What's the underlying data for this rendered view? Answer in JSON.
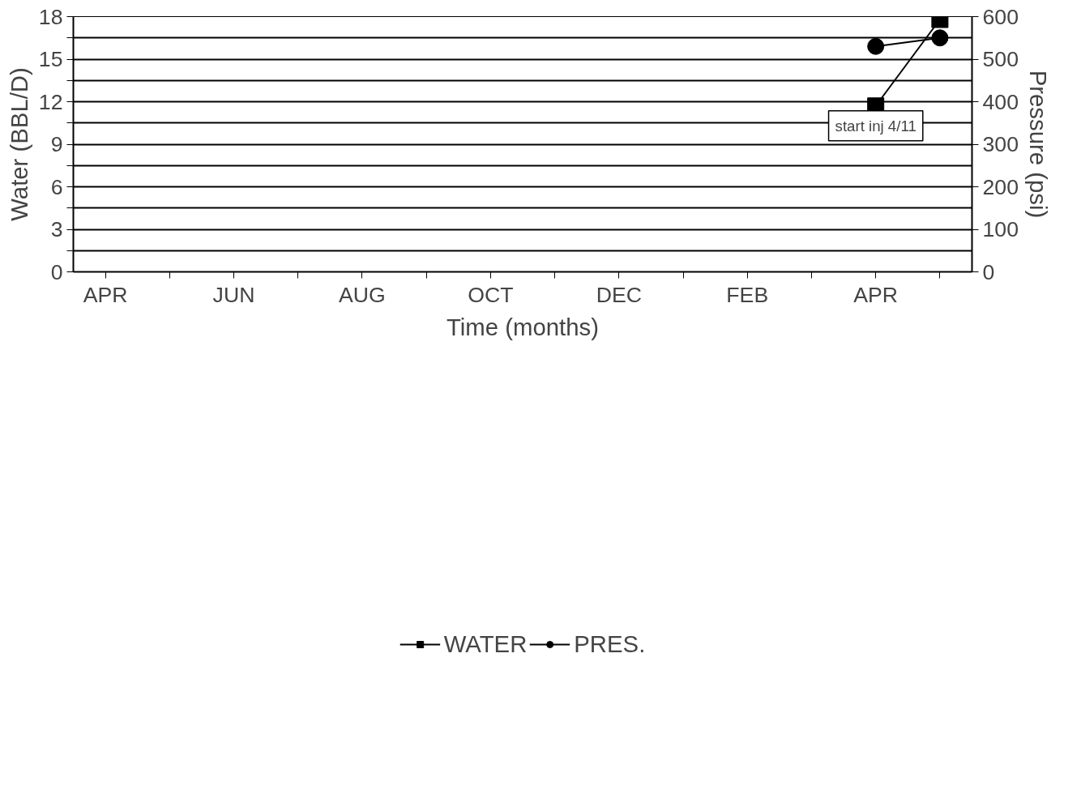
{
  "chart_data": {
    "type": "line",
    "categories": [
      "APR",
      null,
      "JUN",
      null,
      "AUG",
      null,
      "OCT",
      null,
      "DEC",
      null,
      "FEB",
      null,
      "APR",
      null
    ],
    "series": [
      {
        "name": "WATER",
        "color": "#000000",
        "marker": "square",
        "values": [
          null,
          null,
          null,
          null,
          null,
          null,
          null,
          null,
          null,
          null,
          null,
          null,
          11.7,
          17.8
        ]
      },
      {
        "name": "PRES.",
        "color": "#000000",
        "marker": "circle",
        "axis": "y2",
        "values": [
          null,
          null,
          null,
          null,
          null,
          null,
          null,
          null,
          null,
          null,
          null,
          null,
          530,
          550
        ]
      }
    ],
    "xlabel": "Time (months)",
    "ylabel": "Water (BBL/D)",
    "y2label": "Pressure (psi)",
    "ylim": [
      0,
      18
    ],
    "yticks": [
      0,
      {
        "value": 1.5,
        "label": null
      },
      3,
      {
        "value": 4.5,
        "label": null
      },
      6,
      {
        "value": 7.5,
        "label": null
      },
      9,
      {
        "value": 10.5,
        "label": null
      },
      12,
      {
        "value": 13.5,
        "label": null
      },
      15,
      {
        "value": 16.5,
        "label": null
      },
      18
    ],
    "y2lim": [
      0,
      600
    ],
    "y2ticks": [
      0,
      100,
      200,
      300,
      400,
      500,
      600
    ],
    "annotations": [
      "start inj 4/11"
    ],
    "grid": "y",
    "legend": "bottom",
    "line_style": "solid"
  }
}
